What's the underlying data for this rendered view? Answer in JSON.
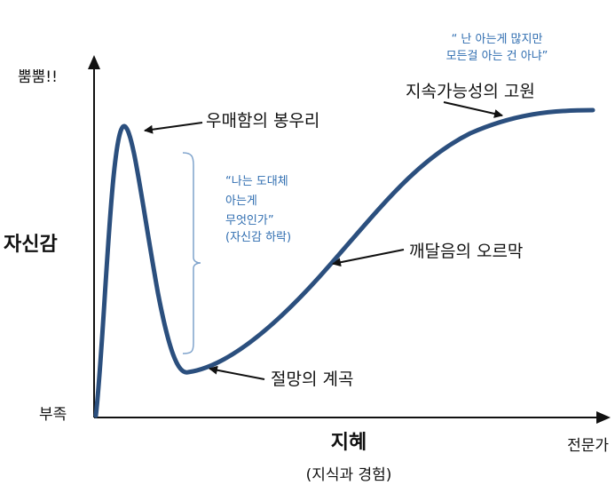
{
  "axes": {
    "y_top_label": "뿜뿜!!",
    "y_title": "자신감",
    "y_bottom_label": "부족",
    "x_title": "지혜",
    "x_subtitle": "(지식과 경험)",
    "x_end_label": "전문가"
  },
  "stages": {
    "peak": "우매함의 봉우리",
    "valley": "절망의 계곡",
    "slope": "깨달음의 오르막",
    "plateau": "지속가능성의 고원"
  },
  "notes": {
    "dip_quote": [
      "“나는 도대체",
      "아는게",
      "무엇인가”",
      "(자신감 하락)"
    ],
    "top_quote": [
      "“ 난 아는게 많지만",
      "모든걸 아는 건 아냐”"
    ]
  },
  "colors": {
    "curve": "#2b4f7e",
    "note_text": "#2f6db0",
    "bracket": "#7fa3cc",
    "axis": "#111111"
  }
}
